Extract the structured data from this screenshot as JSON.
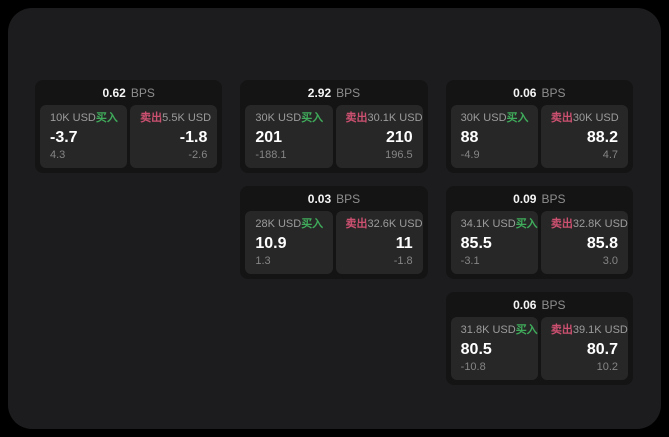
{
  "page": {
    "background": "#000000",
    "surface": "#1c1c1e",
    "card_background": "#141414",
    "panel_background": "#272727",
    "buy_color": "#3fab5b",
    "sell_color": "#cc5070"
  },
  "labels": {
    "bps_unit": "BPS",
    "buy": "买入",
    "sell": "卖出"
  },
  "cards": [
    {
      "bps": "0.62",
      "buy": {
        "amount": "10K USD",
        "price": "-3.7",
        "delta": "4.3"
      },
      "sell": {
        "amount": "5.5K USD",
        "price": "-1.8",
        "delta": "-2.6"
      }
    },
    {
      "bps": "2.92",
      "buy": {
        "amount": "30K USD",
        "price": "201",
        "delta": "-188.1"
      },
      "sell": {
        "amount": "30.1K USD",
        "price": "210",
        "delta": "196.5"
      }
    },
    {
      "bps": "0.06",
      "buy": {
        "amount": "30K USD",
        "price": "88",
        "delta": "-4.9"
      },
      "sell": {
        "amount": "30K USD",
        "price": "88.2",
        "delta": "4.7"
      }
    },
    {
      "bps": "0.03",
      "buy": {
        "amount": "28K USD",
        "price": "10.9",
        "delta": "1.3"
      },
      "sell": {
        "amount": "32.6K USD",
        "price": "11",
        "delta": "-1.8"
      }
    },
    {
      "bps": "0.09",
      "buy": {
        "amount": "34.1K USD",
        "price": "85.5",
        "delta": "-3.1"
      },
      "sell": {
        "amount": "32.8K USD",
        "price": "85.8",
        "delta": "3.0"
      }
    },
    {
      "bps": "0.06",
      "buy": {
        "amount": "31.8K USD",
        "price": "80.5",
        "delta": "-10.8"
      },
      "sell": {
        "amount": "39.1K USD",
        "price": "80.7",
        "delta": "10.2"
      }
    }
  ]
}
